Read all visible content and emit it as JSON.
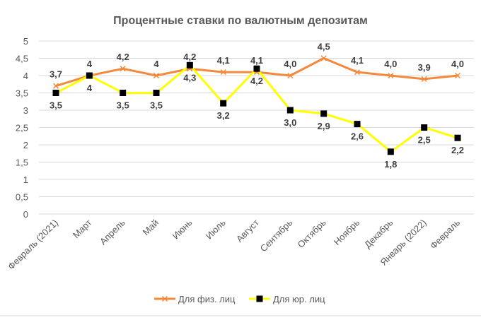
{
  "chart_data": {
    "type": "line",
    "title": "Процентные ставки по валютным депозитам",
    "xlabel": "",
    "ylabel": "",
    "ylim": [
      0,
      5
    ],
    "yticks": [
      "0",
      "0,5",
      "1",
      "1,5",
      "2",
      "2,5",
      "3",
      "3,5",
      "4",
      "4,5",
      "5"
    ],
    "grid": true,
    "legend_position": "bottom",
    "categories": [
      "Февраль (2021)",
      "Март",
      "Апрель",
      "Май",
      "Июнь",
      "Июль",
      "Август",
      "Сентябрь",
      "Октябрь",
      "Ноябрь",
      "Декабрь",
      "Январь (2022)",
      "Февраль"
    ],
    "series": [
      {
        "name": "Для физ. лиц",
        "color": "#F4883B",
        "marker": "x",
        "values": [
          3.7,
          4.0,
          4.2,
          4.0,
          4.2,
          4.1,
          4.1,
          4.0,
          4.5,
          4.1,
          4.0,
          3.9,
          4.0
        ],
        "labels": [
          "3,7",
          "4",
          "4,2",
          "4",
          "4,2",
          "4,1",
          "4,1",
          "4,0",
          "4,5",
          "4,1",
          "4,0",
          "3,9",
          "4,0"
        ]
      },
      {
        "name": "Для юр. лиц",
        "color": "#FFFF00",
        "marker": "square",
        "values": [
          3.5,
          4.0,
          3.5,
          3.5,
          4.3,
          3.2,
          4.2,
          3.0,
          2.9,
          2.6,
          1.8,
          2.5,
          2.2
        ],
        "labels": [
          "3,5",
          "4",
          "3,5",
          "3,5",
          "4,3",
          "3,2",
          "4,2",
          "3,0",
          "2,9",
          "2,6",
          "1,8",
          "2,5",
          "2,2"
        ]
      }
    ]
  }
}
